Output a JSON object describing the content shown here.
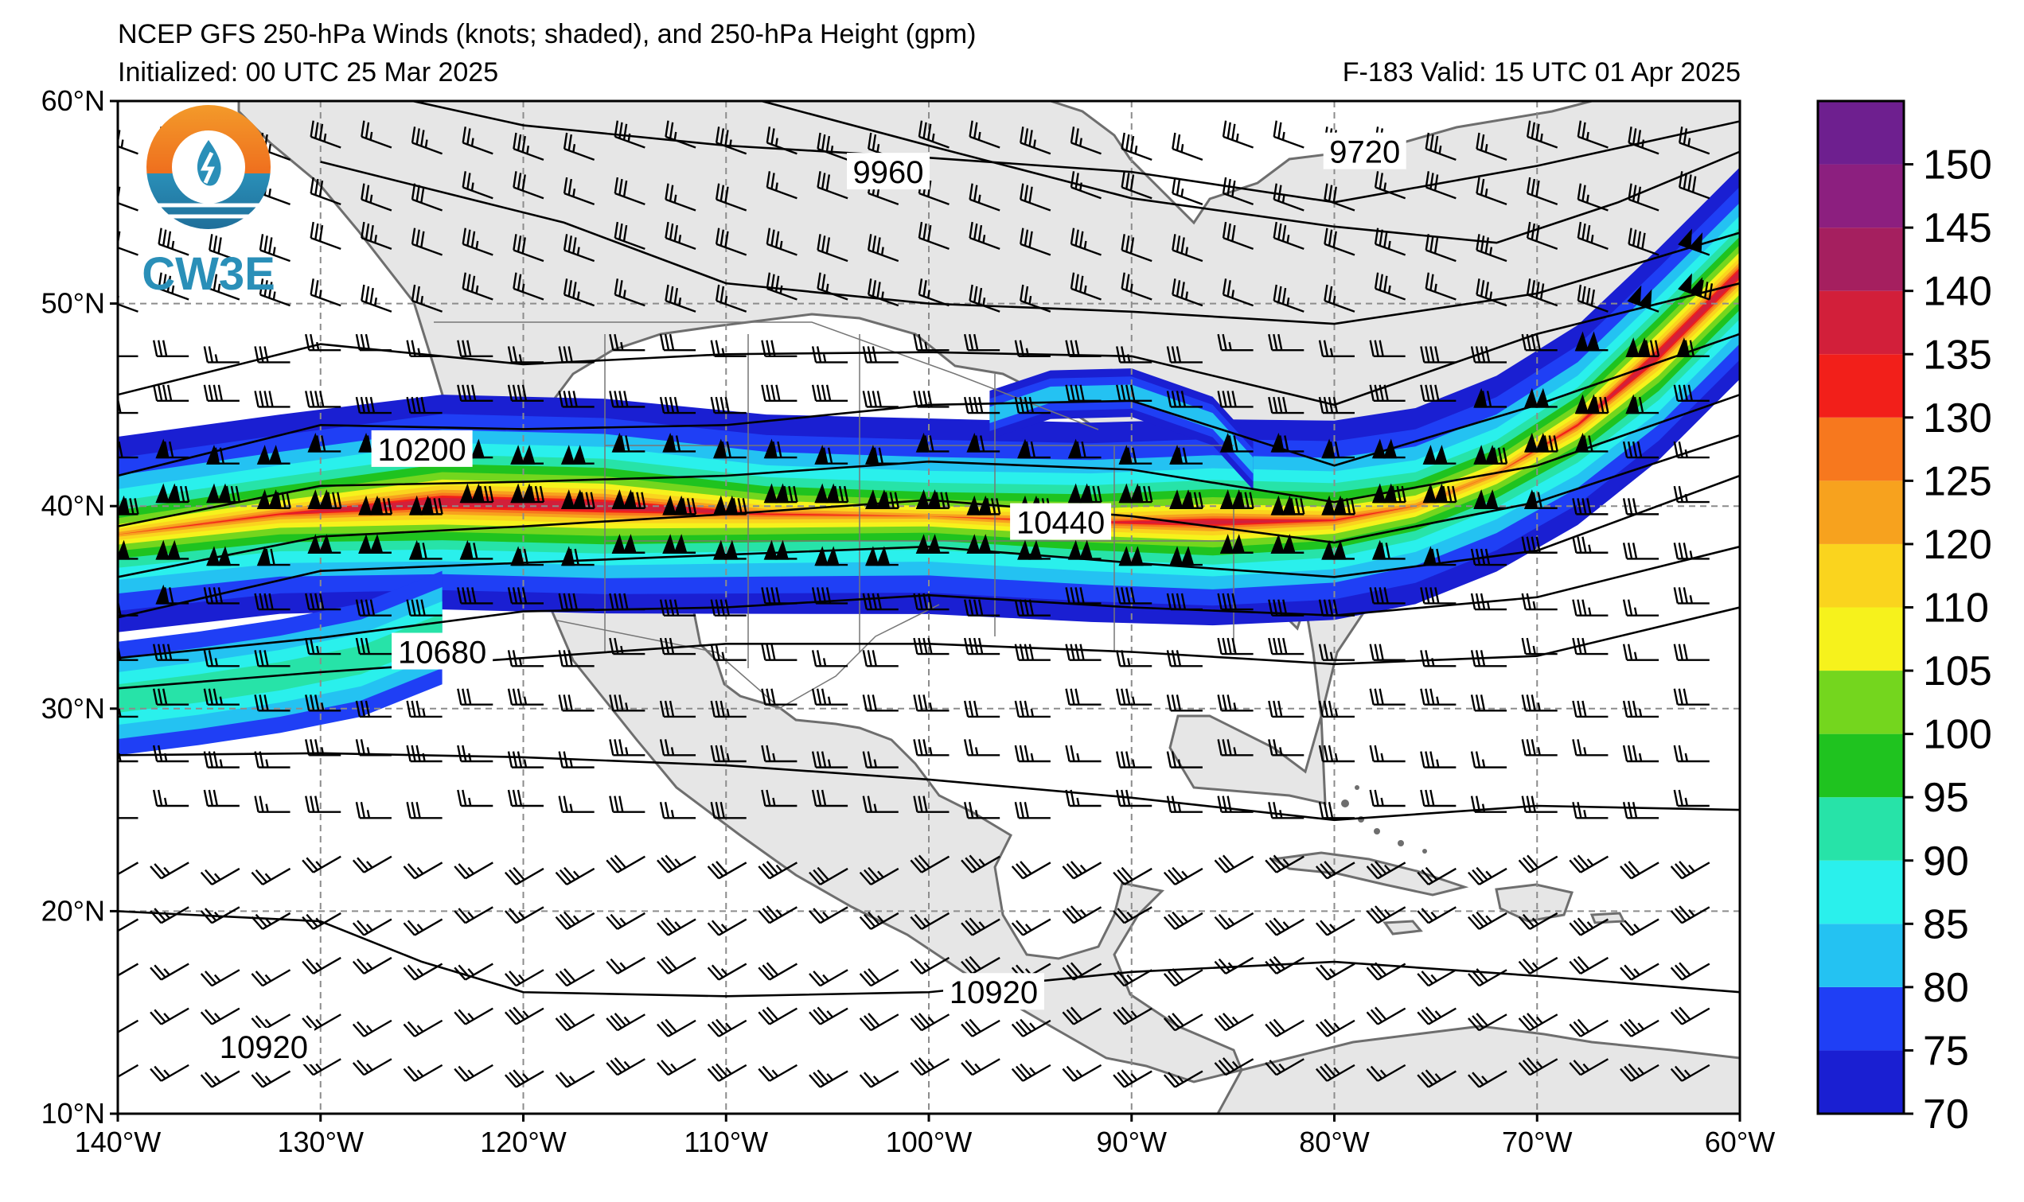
{
  "header": {
    "title": "NCEP GFS 250-hPa Winds (knots; shaded), and 250-hPa Height (gpm)",
    "initialized": "Initialized: 00 UTC 25 Mar 2025",
    "valid": "F-183  Valid: 15 UTC 01 Apr 2025"
  },
  "logo": {
    "text": "CW3E"
  },
  "map": {
    "lat_labels": [
      "60°N",
      "50°N",
      "40°N",
      "30°N",
      "20°N",
      "10°N"
    ],
    "lon_labels": [
      "140°W",
      "130°W",
      "120°W",
      "110°W",
      "100°W",
      "90°W",
      "80°W",
      "70°W",
      "60°W"
    ],
    "extent": {
      "lon_min": -140,
      "lon_max": -60,
      "lat_min": 10,
      "lat_max": 60
    },
    "contour_labels": [
      {
        "text": "9960",
        "lon": -102,
        "lat": 56.5
      },
      {
        "text": "9720",
        "lon": -78.5,
        "lat": 57.5
      },
      {
        "text": "10200",
        "lon": -125,
        "lat": 42.8
      },
      {
        "text": "10440",
        "lon": -93.5,
        "lat": 39.2
      },
      {
        "text": "10680",
        "lon": -124,
        "lat": 32.8
      },
      {
        "text": "10920",
        "lon": -96.8,
        "lat": 16.0
      },
      {
        "text": "10920",
        "lon": -132.8,
        "lat": 13.3
      }
    ],
    "colors": {
      "land": "#e6e6e6",
      "coast": "#6e6e6e",
      "grid": "#8c8c8c"
    }
  },
  "colorbar": {
    "levels": [
      70,
      75,
      80,
      85,
      90,
      95,
      100,
      105,
      110,
      120,
      125,
      130,
      135,
      140,
      145,
      150
    ],
    "labels": [
      "70",
      "75",
      "80",
      "85",
      "90",
      "95",
      "100",
      "105",
      "110",
      "120",
      "125",
      "130",
      "135",
      "140",
      "145",
      "150"
    ],
    "colors": [
      "#1a1fd2",
      "#1f3ff5",
      "#24c2f2",
      "#2af0ec",
      "#27e3a8",
      "#1fc31f",
      "#74d61e",
      "#f6f21c",
      "#fad41e",
      "#f7a21e",
      "#f7781e",
      "#f21f1a",
      "#d21f3a",
      "#a51f5f",
      "#8c1f7f",
      "#6e1f8f"
    ]
  }
}
